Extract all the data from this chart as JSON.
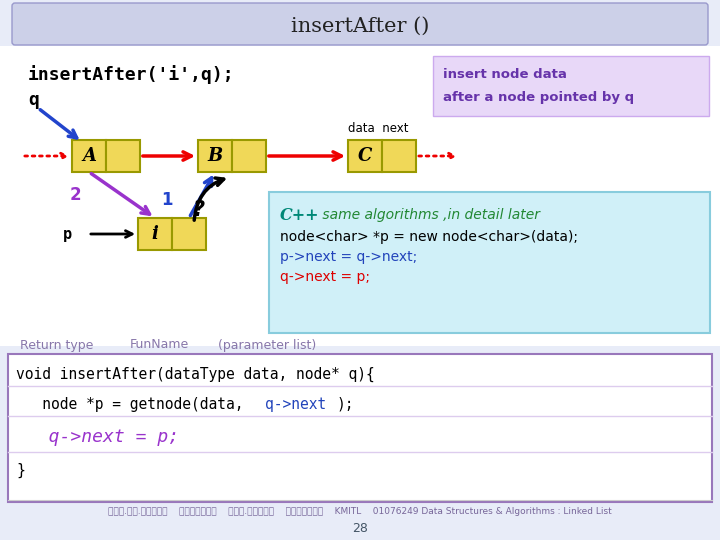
{
  "title": "insertAfter ()",
  "title_bg": "#ccd0e8",
  "slide_bg": "#e8ecf8",
  "insert_note_line1": "insert node data",
  "insert_note_line2": "after a node pointed by q",
  "insert_note_bg": "#e8d8f8",
  "node_fill": "#f0d858",
  "node_stroke": "#999900",
  "cpp_bg": "#d0f0f8",
  "cpp_border": "#88ccdd",
  "code_bg": "#ffffff",
  "code_border": "#9977bb",
  "sep_color": "#ddccee",
  "footer_color": "#8877aa",
  "arrow_red": "#ee0000",
  "arrow_blue": "#2244cc",
  "arrow_purple": "#9933cc",
  "text_purple": "#9933cc",
  "text_blue": "#2244bb",
  "text_teal": "#008877",
  "text_green": "#228833",
  "text_red": "#dd0000"
}
